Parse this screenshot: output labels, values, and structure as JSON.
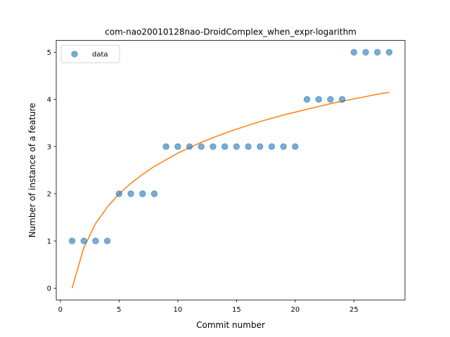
{
  "chart_data": {
    "type": "scatter",
    "title": "com-nao20010128nao-DroidComplex_when_expr-logarithm",
    "xlabel": "Commit number",
    "ylabel": "Number of instance of a feature",
    "xlim": [
      -0.35,
      29.35
    ],
    "ylim": [
      -0.25,
      5.25
    ],
    "xticks": [
      0,
      5,
      10,
      15,
      20,
      25
    ],
    "yticks": [
      0,
      1,
      2,
      3,
      4,
      5
    ],
    "grid": false,
    "legend": {
      "placement": "top-left",
      "entries": [
        "data"
      ]
    },
    "series": [
      {
        "name": "data",
        "kind": "scatter",
        "color": "#1f77b4",
        "x": [
          1,
          2,
          3,
          4,
          5,
          6,
          7,
          8,
          9,
          10,
          11,
          12,
          13,
          14,
          15,
          16,
          17,
          18,
          19,
          20,
          21,
          22,
          23,
          24,
          25,
          26,
          27,
          28
        ],
        "y": [
          1,
          1,
          1,
          1,
          2,
          2,
          2,
          2,
          3,
          3,
          3,
          3,
          3,
          3,
          3,
          3,
          3,
          3,
          3,
          3,
          4,
          4,
          4,
          4,
          5,
          5,
          5,
          5
        ]
      },
      {
        "kind": "line",
        "color": "#ff7f0e",
        "x": [
          1,
          2,
          3,
          4,
          5,
          6,
          7,
          8,
          9,
          10,
          11,
          12,
          13,
          14,
          15,
          16,
          17,
          18,
          19,
          20,
          21,
          22,
          23,
          24,
          25,
          26,
          27,
          28
        ],
        "y": [
          0.0,
          0.86,
          1.37,
          1.72,
          2.0,
          2.22,
          2.41,
          2.58,
          2.72,
          2.86,
          2.98,
          3.09,
          3.19,
          3.28,
          3.37,
          3.45,
          3.53,
          3.6,
          3.67,
          3.73,
          3.79,
          3.85,
          3.91,
          3.96,
          4.01,
          4.06,
          4.11,
          4.15
        ]
      }
    ]
  }
}
